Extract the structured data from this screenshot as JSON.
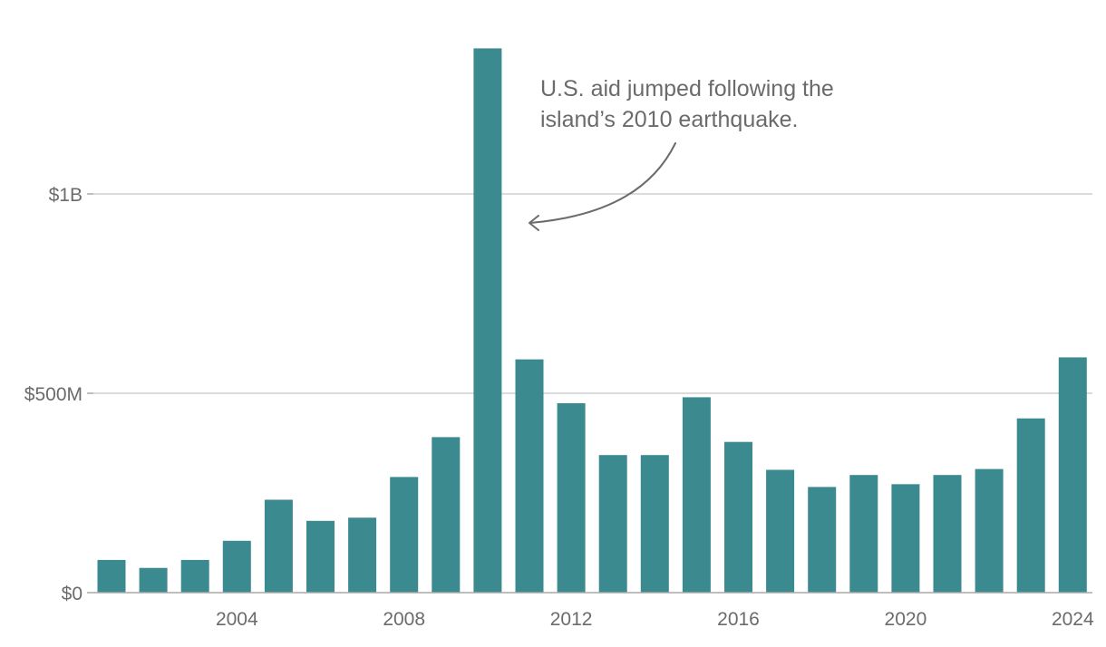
{
  "chart_data": {
    "type": "bar",
    "title": "",
    "xlabel": "",
    "ylabel": "",
    "categories": [
      2001,
      2002,
      2003,
      2004,
      2005,
      2006,
      2007,
      2008,
      2009,
      2010,
      2011,
      2012,
      2013,
      2014,
      2015,
      2016,
      2017,
      2018,
      2019,
      2020,
      2021,
      2022,
      2023,
      2024
    ],
    "values": [
      82,
      62,
      82,
      130,
      233,
      180,
      188,
      290,
      390,
      1365,
      585,
      475,
      345,
      345,
      490,
      378,
      308,
      265,
      295,
      272,
      295,
      310,
      437,
      590
    ],
    "units": "USD millions",
    "ylim": [
      0,
      1400
    ],
    "y_ticks": [
      {
        "value": 0,
        "label": "$0"
      },
      {
        "value": 500,
        "label": "$500M"
      },
      {
        "value": 1000,
        "label": "$1B"
      }
    ],
    "x_ticks": [
      {
        "value": 2004,
        "label": "2004"
      },
      {
        "value": 2008,
        "label": "2008"
      },
      {
        "value": 2012,
        "label": "2012"
      },
      {
        "value": 2016,
        "label": "2016"
      },
      {
        "value": 2020,
        "label": "2020"
      },
      {
        "value": 2024,
        "label": "2024"
      }
    ],
    "grid": true,
    "bar_color": "#3b8a8f",
    "gridline_color": "#cfcfcf",
    "axis_color": "#a9a9a9",
    "annotation": {
      "lines": [
        "U.S. aid jumped following the",
        "island’s 2010 earthquake."
      ],
      "target_category": 2010,
      "color": "#6b6b6b"
    }
  }
}
